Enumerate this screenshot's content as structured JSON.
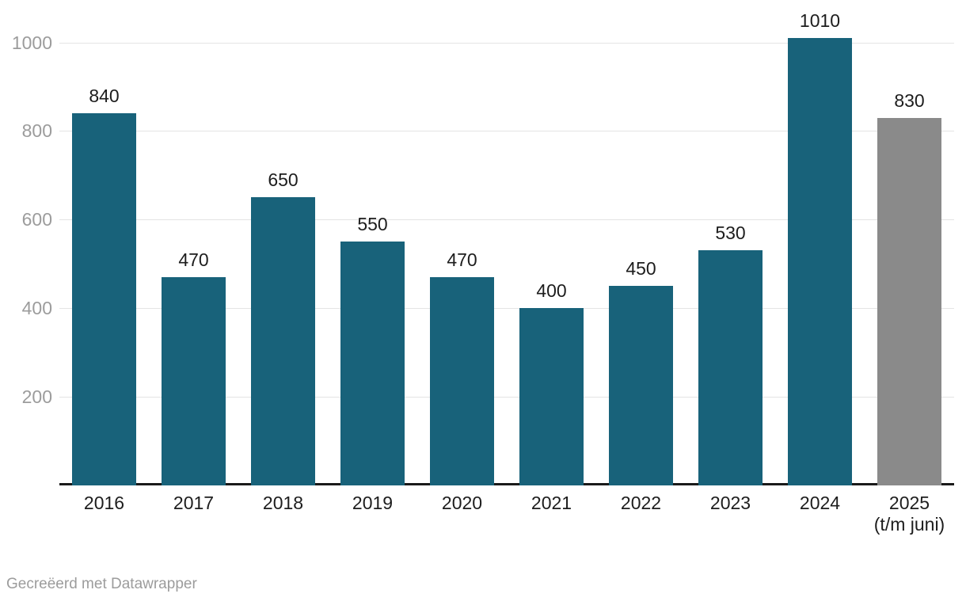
{
  "footer": {
    "text": "Gecreëerd met Datawrapper"
  },
  "colors": {
    "background": "#ffffff",
    "bar": "#18627a",
    "bar_final_period": "#8a8a8a",
    "grid": "#e4e4e4",
    "axis": "#1a1a1a",
    "value_label": "#1d1d1d",
    "x_label": "#1d1d1d",
    "y_tick_label": "#9c9c9c",
    "footer": "#9c9c9c"
  },
  "chart_data": {
    "type": "bar",
    "title": "",
    "xlabel": "",
    "ylabel": "",
    "categories": [
      "2016",
      "2017",
      "2018",
      "2019",
      "2020",
      "2021",
      "2022",
      "2023",
      "2024",
      "2025 (t/m juni)"
    ],
    "values": [
      840,
      470,
      650,
      550,
      470,
      400,
      450,
      530,
      1010,
      830
    ],
    "bars": [
      {
        "label": "2016",
        "sublabel": "",
        "value": 840,
        "final": false
      },
      {
        "label": "2017",
        "sublabel": "",
        "value": 470,
        "final": false
      },
      {
        "label": "2018",
        "sublabel": "",
        "value": 650,
        "final": false
      },
      {
        "label": "2019",
        "sublabel": "",
        "value": 550,
        "final": false
      },
      {
        "label": "2020",
        "sublabel": "",
        "value": 470,
        "final": false
      },
      {
        "label": "2021",
        "sublabel": "",
        "value": 400,
        "final": false
      },
      {
        "label": "2022",
        "sublabel": "",
        "value": 450,
        "final": false
      },
      {
        "label": "2023",
        "sublabel": "",
        "value": 530,
        "final": false
      },
      {
        "label": "2024",
        "sublabel": "",
        "value": 1010,
        "final": false
      },
      {
        "label": "2025",
        "sublabel": "(t/m juni)",
        "value": 830,
        "final": true
      }
    ],
    "yticks": [
      200,
      400,
      600,
      800,
      1000
    ],
    "ylim": [
      0,
      1070
    ],
    "grid": true,
    "legend": "none",
    "value_labels_shown": true
  }
}
